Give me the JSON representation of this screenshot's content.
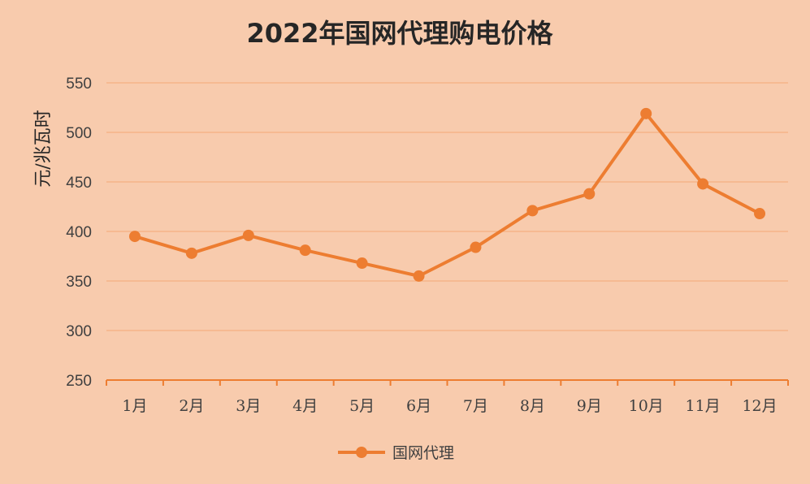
{
  "chart_data": {
    "type": "line",
    "title": "2022年国网代理购电价格",
    "xlabel": "",
    "ylabel": "元/兆瓦时",
    "categories": [
      "1月",
      "2月",
      "3月",
      "4月",
      "5月",
      "6月",
      "7月",
      "8月",
      "9月",
      "10月",
      "11月",
      "12月"
    ],
    "series": [
      {
        "name": "国网代理",
        "values": [
          395,
          378,
          396,
          381,
          368,
          355,
          384,
          421,
          438,
          519,
          448,
          418
        ]
      }
    ],
    "ylim": [
      250,
      550
    ],
    "yticks": [
      "250",
      "300",
      "350",
      "400",
      "450",
      "500",
      "550"
    ],
    "grid": true,
    "legend_position": "bottom",
    "colors": {
      "series": "#ed7d31",
      "grid": "#f4b183",
      "axis": "#ed7d31",
      "background": "#f8cbad"
    }
  }
}
